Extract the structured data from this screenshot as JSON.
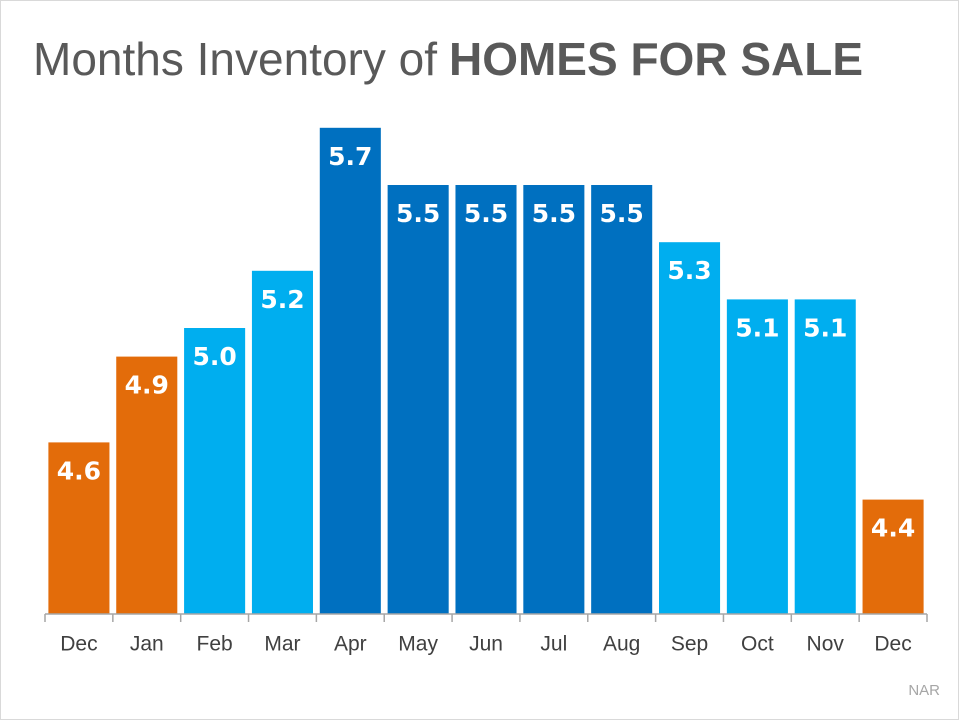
{
  "chart_data": {
    "type": "bar",
    "title": {
      "main": "Months Inventory of",
      "emphasis": "HOMES FOR SALE"
    },
    "categories": [
      "Dec",
      "Jan",
      "Feb",
      "Mar",
      "Apr",
      "May",
      "Jun",
      "Jul",
      "Aug",
      "Sep",
      "Oct",
      "Nov",
      "Dec"
    ],
    "values": [
      4.6,
      4.9,
      5,
      5.2,
      5.7,
      5.5,
      5.5,
      5.5,
      5.5,
      5.3,
      5.1,
      5.1,
      4.4
    ],
    "value_labels": [
      "4.6",
      "4.9",
      "5.0",
      "5.2",
      "5.7",
      "5.5",
      "5.5",
      "5.5",
      "5.5",
      "5.3",
      "5.1",
      "5.1",
      "4.4"
    ],
    "colors": [
      "#e36c0a",
      "#e36c0a",
      "#00aeef",
      "#00aeef",
      "#0070c0",
      "#0070c0",
      "#0070c0",
      "#0070c0",
      "#0070c0",
      "#00aeef",
      "#00aeef",
      "#00aeef",
      "#e36c0a"
    ],
    "ylim": [
      4,
      6
    ],
    "source": "NAR"
  }
}
